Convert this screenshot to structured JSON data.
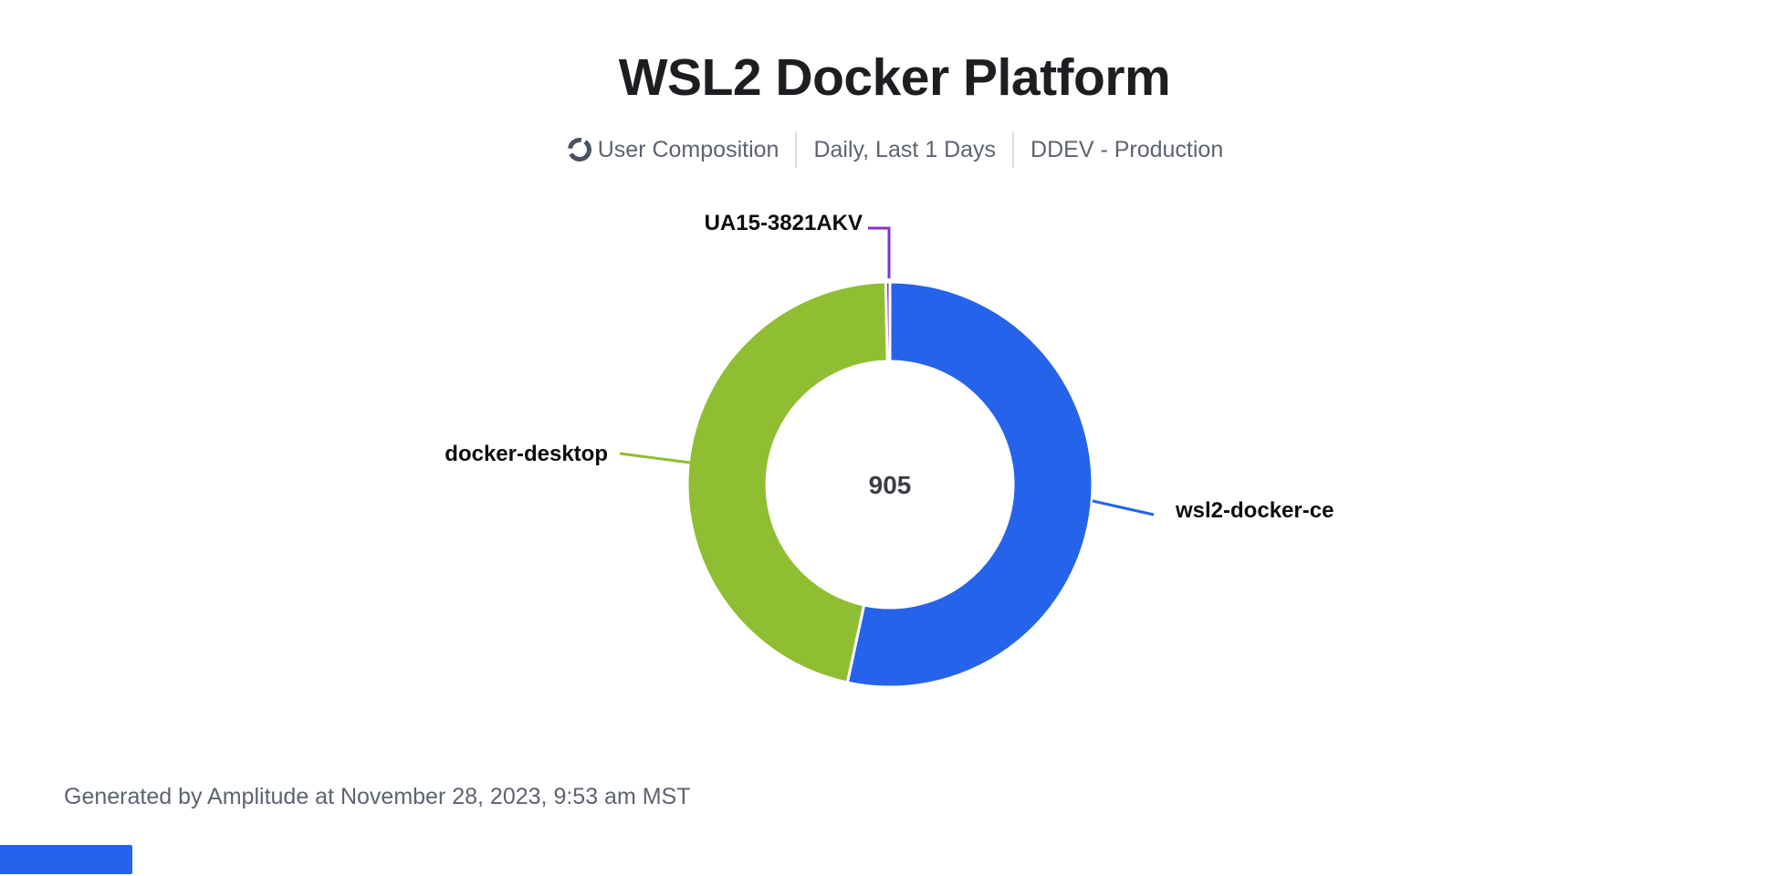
{
  "header": {
    "title": "WSL2 Docker Platform",
    "meta": {
      "chart_type_label": "User Composition",
      "date_range_label": "Daily, Last 1 Days",
      "project_label": "DDEV - Production"
    }
  },
  "chart_data": {
    "type": "pie",
    "subtype": "donut",
    "title": "WSL2 Docker Platform",
    "center_total": "905",
    "total": 905,
    "start_angle_deg": 0,
    "direction": "clockwise",
    "legend_position": "callout-labels",
    "series": [
      {
        "name": "wsl2-docker-ce",
        "value": 483,
        "percent": 53.4,
        "color": "#2563eb"
      },
      {
        "name": "docker-desktop",
        "value": 419,
        "percent": 46.3,
        "color": "#90be32"
      },
      {
        "name": "UA15-3821AKV",
        "value": 3,
        "percent": 0.3,
        "color": "#8233c9"
      }
    ]
  },
  "footer": {
    "generated_text": "Generated by Amplitude at November 28, 2023, 9:53 am MST"
  },
  "branding": {
    "logo_color": "#2563eb"
  },
  "colors": {
    "title_text": "#1c1e21",
    "subtitle_text": "#5d6370",
    "divider": "#d9dde3",
    "callout_text": "#0b0c0d",
    "center_text": "#3b3e45",
    "slice_gap_stroke": "#ffffff"
  }
}
